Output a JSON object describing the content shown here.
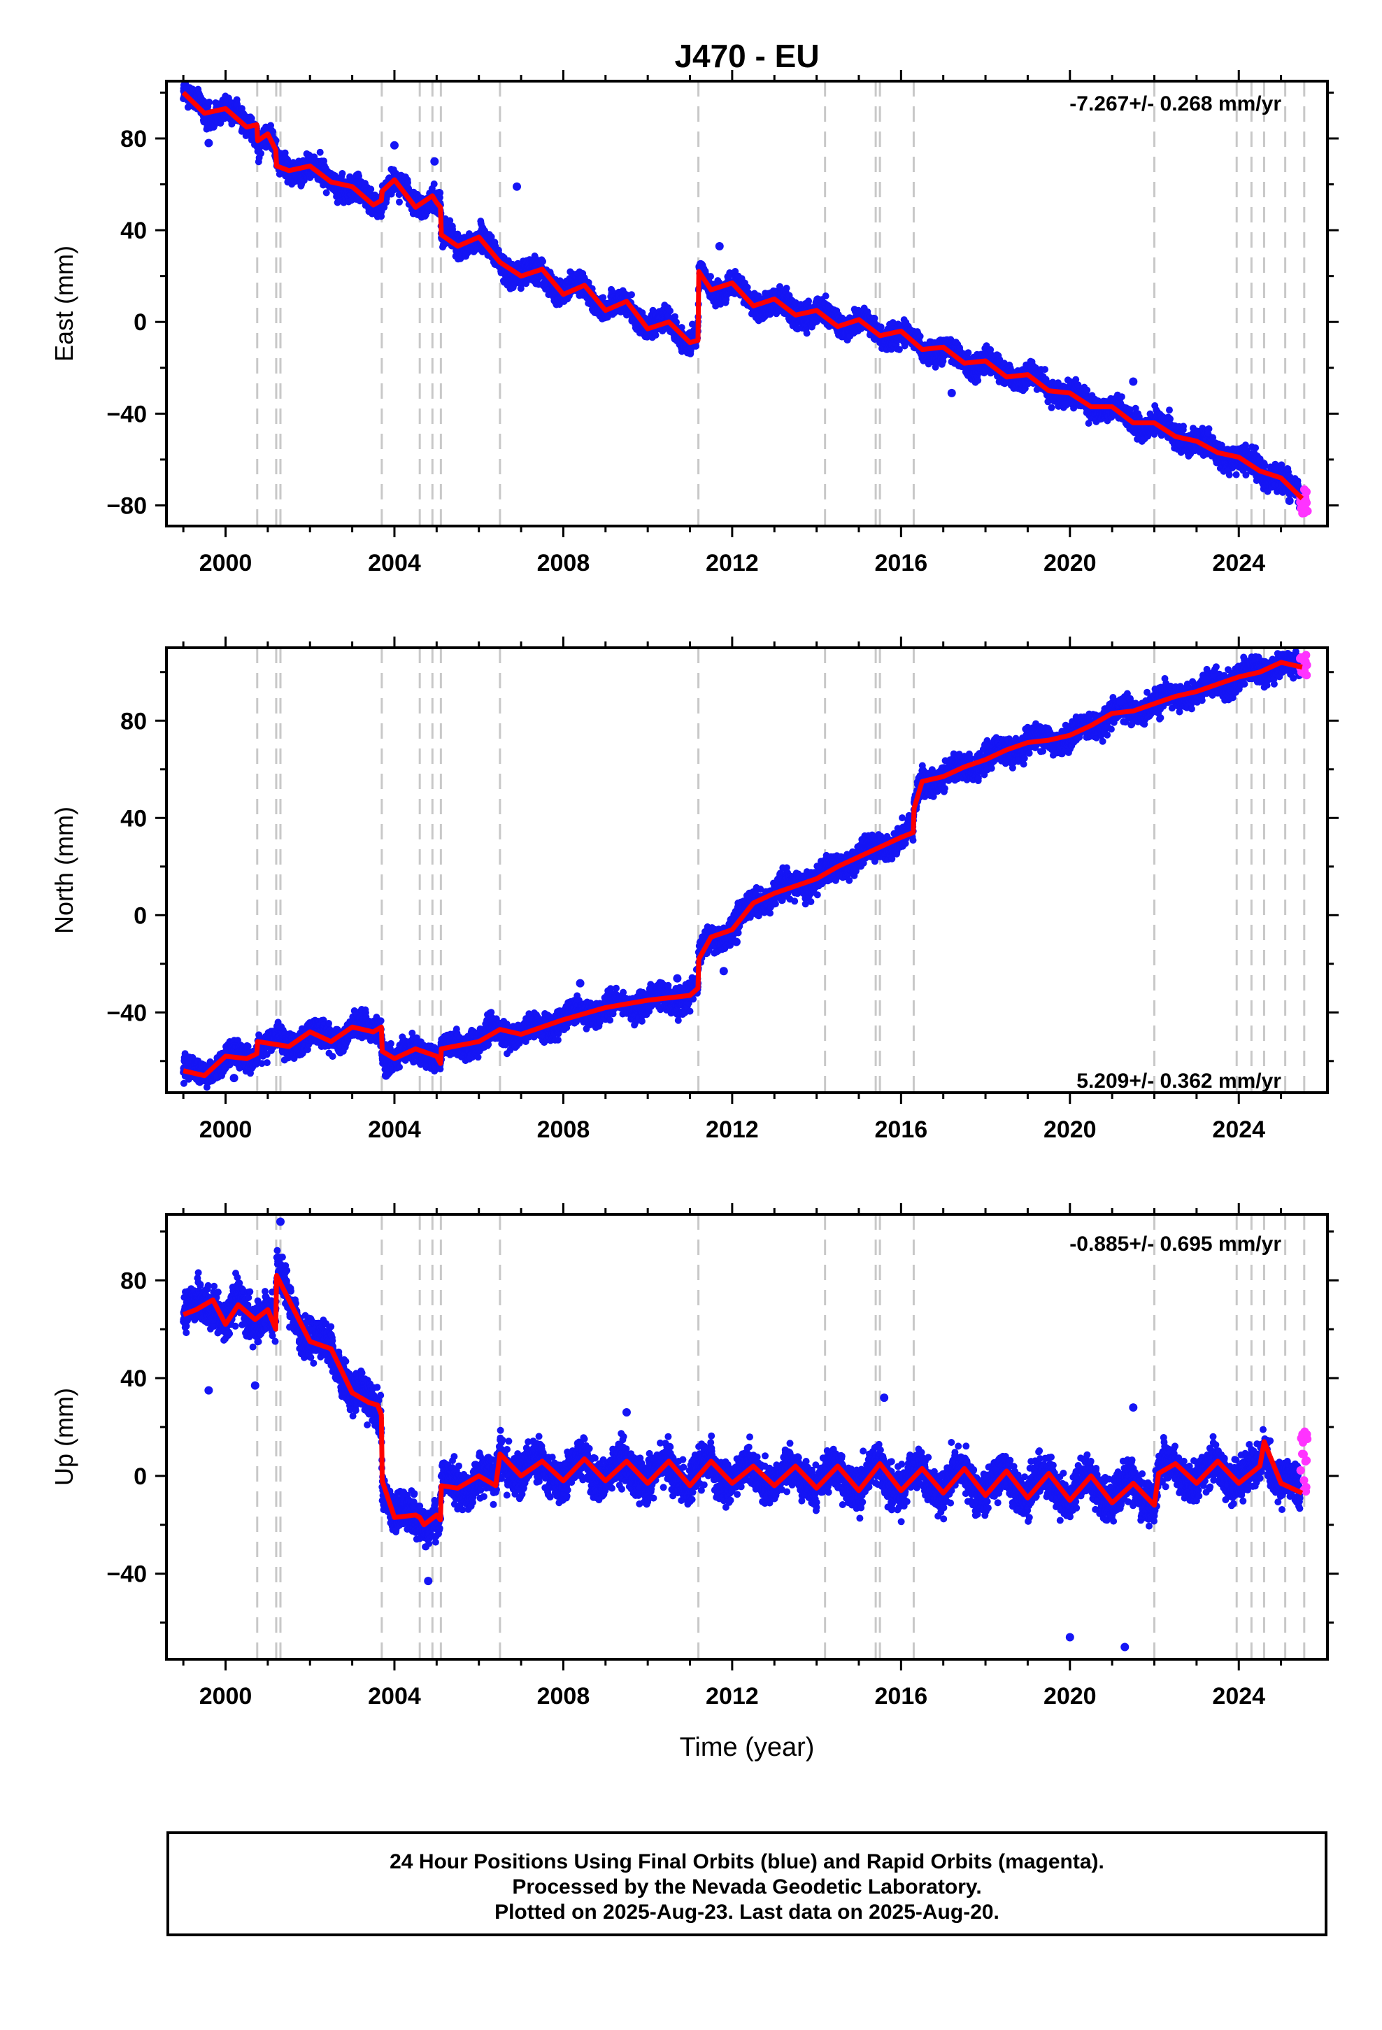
{
  "title": "J470 - EU",
  "footer": {
    "line1": "24 Hour Positions Using Final Orbits (blue) and Rapid Orbits (magenta).",
    "line2": "Processed by the Nevada Geodetic Laboratory.",
    "line3": "Plotted on 2025-Aug-23. Last data on 2025-Aug-20."
  },
  "colors": {
    "final_orbits": "#1515f5",
    "rapid_orbits": "#ff33ff",
    "model_fit": "#ff0000",
    "event_lines": "#c8c8c8"
  },
  "event_years": [
    2000.75,
    2001.2,
    2001.3,
    2003.7,
    2004.6,
    2004.9,
    2005.1,
    2006.5,
    2011.2,
    2014.2,
    2015.4,
    2015.5,
    2016.3,
    2022.0,
    2023.95,
    2024.3,
    2024.6,
    2025.1,
    2025.55
  ],
  "chart_data": [
    {
      "type": "scatter",
      "panel": "east",
      "ylabel": "East (mm)",
      "xlabel": "",
      "xlim": [
        1998.6,
        2026.1
      ],
      "ylim": [
        -89,
        105
      ],
      "xticks": [
        2000,
        2004,
        2008,
        2012,
        2016,
        2020,
        2024
      ],
      "yticks": [
        -80,
        -40,
        0,
        40,
        80
      ],
      "velocity_label": "-7.267+/- 0.268 mm/yr",
      "velocity_label_position": "top-right",
      "grid": false,
      "series": [
        {
          "role": "model fit",
          "x": [
            1999.0,
            1999.5,
            2000.0,
            2000.5,
            2000.74,
            2000.76,
            2001.0,
            2001.19,
            2001.21,
            2001.5,
            2002.0,
            2002.5,
            2003.0,
            2003.5,
            2003.69,
            2003.71,
            2004.0,
            2004.5,
            2004.9,
            2005.0,
            2005.09,
            2005.11,
            2005.5,
            2006.0,
            2006.5,
            2007.0,
            2007.5,
            2008.0,
            2008.5,
            2009.0,
            2009.5,
            2010.0,
            2010.5,
            2011.0,
            2011.19,
            2011.21,
            2011.5,
            2012.0,
            2012.5,
            2013.0,
            2013.5,
            2014.0,
            2014.5,
            2015.0,
            2015.5,
            2016.0,
            2016.5,
            2017.0,
            2017.5,
            2018.0,
            2018.5,
            2019.0,
            2019.5,
            2020.0,
            2020.5,
            2021.0,
            2021.5,
            2022.0,
            2022.5,
            2023.0,
            2023.5,
            2024.0,
            2024.5,
            2025.0,
            2025.5
          ],
          "y": [
            100,
            91,
            93,
            85,
            86,
            79,
            82,
            75,
            68,
            66,
            68,
            61,
            59,
            51,
            53,
            57,
            62,
            50,
            55,
            52,
            50,
            38,
            33,
            37,
            26,
            20,
            23,
            12,
            16,
            5,
            9,
            -3,
            0,
            -9,
            -8,
            22,
            14,
            17,
            7,
            10,
            3,
            5,
            -2,
            1,
            -6,
            -4,
            -12,
            -11,
            -18,
            -17,
            -24,
            -23,
            -30,
            -31,
            -37,
            -37,
            -44,
            -44,
            -50,
            -52,
            -57,
            -59,
            -65,
            -68,
            -77
          ]
        },
        {
          "role": "daily positions (final orbits)",
          "noise_mm": 3.5,
          "outliers": [
            [
              1999.6,
              78
            ],
            [
              2004.0,
              77
            ],
            [
              2004.95,
              70
            ],
            [
              2006.9,
              59
            ],
            [
              2011.7,
              33
            ],
            [
              2017.2,
              -31
            ],
            [
              2019.9,
              -36
            ],
            [
              2021.5,
              -26
            ],
            [
              2022.6,
              -53
            ],
            [
              2025.2,
              -78
            ]
          ]
        },
        {
          "role": "daily positions (rapid orbits)",
          "x_range": [
            2025.45,
            2025.63
          ],
          "y_range": [
            -84,
            -73
          ]
        }
      ]
    },
    {
      "type": "scatter",
      "panel": "north",
      "ylabel": "North (mm)",
      "xlabel": "",
      "xlim": [
        1998.6,
        2026.1
      ],
      "ylim": [
        -73,
        110
      ],
      "xticks": [
        2000,
        2004,
        2008,
        2012,
        2016,
        2020,
        2024
      ],
      "yticks": [
        -40,
        0,
        40,
        80
      ],
      "velocity_label": "5.209+/- 0.362 mm/yr",
      "velocity_label_position": "bottom-right",
      "grid": false,
      "series": [
        {
          "role": "model fit",
          "x": [
            1999.0,
            1999.5,
            2000.0,
            2000.5,
            2000.74,
            2000.76,
            2001.5,
            2002.0,
            2002.5,
            2003.0,
            2003.5,
            2003.69,
            2003.71,
            2004.0,
            2004.5,
            2005.0,
            2005.09,
            2005.11,
            2006.0,
            2006.5,
            2007.0,
            2008.0,
            2009.0,
            2010.0,
            2011.0,
            2011.19,
            2011.21,
            2011.5,
            2012.0,
            2012.5,
            2013.0,
            2013.5,
            2014.0,
            2014.5,
            2015.0,
            2015.5,
            2016.0,
            2016.29,
            2016.31,
            2016.5,
            2017.0,
            2017.5,
            2018.0,
            2018.5,
            2019.0,
            2019.5,
            2020.0,
            2020.5,
            2021.0,
            2021.5,
            2022.0,
            2022.5,
            2023.0,
            2023.5,
            2024.0,
            2024.5,
            2025.0,
            2025.5
          ],
          "y": [
            -64,
            -66,
            -58,
            -59,
            -57,
            -52,
            -54,
            -48,
            -52,
            -46,
            -48,
            -46,
            -56,
            -59,
            -55,
            -58,
            -61,
            -55,
            -52,
            -47,
            -49,
            -43,
            -38,
            -35,
            -33,
            -30,
            -18,
            -9,
            -6,
            5,
            9,
            12,
            15,
            20,
            24,
            28,
            32,
            34,
            44,
            55,
            57,
            61,
            64,
            68,
            71,
            72,
            74,
            78,
            83,
            84,
            87,
            90,
            92,
            95,
            98,
            100,
            104,
            102
          ]
        },
        {
          "role": "daily positions (final orbits)",
          "noise_mm": 3.5,
          "outliers": [
            [
              2000.2,
              -67
            ],
            [
              2003.8,
              -66
            ],
            [
              2008.4,
              -28
            ],
            [
              2010.7,
              -26
            ],
            [
              2011.8,
              -23
            ],
            [
              2012.1,
              -11
            ],
            [
              2018.0,
              70
            ],
            [
              2021.2,
              88
            ],
            [
              2023.2,
              97
            ]
          ]
        },
        {
          "role": "daily positions (rapid orbits)",
          "x_range": [
            2025.45,
            2025.63
          ],
          "y_range": [
            98,
            107
          ]
        }
      ]
    },
    {
      "type": "scatter",
      "panel": "up",
      "ylabel": "Up (mm)",
      "xlabel": "Time (year)",
      "xlim": [
        1998.6,
        2026.1
      ],
      "ylim": [
        -75,
        107
      ],
      "xticks": [
        2000,
        2004,
        2008,
        2012,
        2016,
        2020,
        2024
      ],
      "yticks": [
        -40,
        0,
        40,
        80
      ],
      "velocity_label": "-0.885+/- 0.695 mm/yr",
      "velocity_label_position": "top-right",
      "grid": false,
      "series": [
        {
          "role": "model fit",
          "x": [
            1999.0,
            1999.3,
            1999.7,
            2000.0,
            2000.3,
            2000.7,
            2001.0,
            2001.19,
            2001.21,
            2001.5,
            2002.0,
            2002.5,
            2003.0,
            2003.4,
            2003.6,
            2003.69,
            2003.71,
            2004.0,
            2004.5,
            2004.6,
            2004.7,
            2005.0,
            2005.09,
            2005.11,
            2005.5,
            2006.0,
            2006.4,
            2006.5,
            2007.0,
            2007.5,
            2008.0,
            2008.5,
            2009.0,
            2009.5,
            2010.0,
            2010.5,
            2011.0,
            2011.5,
            2012.0,
            2012.5,
            2013.0,
            2013.5,
            2014.0,
            2014.5,
            2015.0,
            2015.5,
            2016.0,
            2016.5,
            2017.0,
            2017.5,
            2018.0,
            2018.5,
            2019.0,
            2019.5,
            2020.0,
            2020.5,
            2021.0,
            2021.5,
            2022.0,
            2022.1,
            2022.5,
            2023.0,
            2023.5,
            2024.0,
            2024.5,
            2024.6,
            2025.0,
            2025.5
          ],
          "y": [
            66,
            68,
            72,
            62,
            70,
            64,
            68,
            60,
            82,
            72,
            55,
            52,
            34,
            30,
            29,
            25,
            -2,
            -17,
            -16,
            -17,
            -20,
            -16,
            -18,
            -4,
            -5,
            0,
            -4,
            9,
            0,
            6,
            -2,
            7,
            -2,
            6,
            -3,
            6,
            -4,
            6,
            -3,
            4,
            -4,
            4,
            -5,
            4,
            -6,
            5,
            -6,
            3,
            -7,
            3,
            -8,
            2,
            -9,
            1,
            -10,
            0,
            -11,
            -3,
            -12,
            1,
            5,
            -3,
            6,
            -3,
            4,
            14,
            -3,
            -7
          ]
        },
        {
          "role": "daily positions (final orbits)",
          "noise_mm": 5.5,
          "outliers": [
            [
              1999.6,
              35
            ],
            [
              2000.7,
              37
            ],
            [
              2001.3,
              104
            ],
            [
              2004.8,
              -43
            ],
            [
              2009.5,
              26
            ],
            [
              2015.6,
              32
            ],
            [
              2020.0,
              -66
            ],
            [
              2021.3,
              -70
            ],
            [
              2021.5,
              28
            ]
          ]
        },
        {
          "role": "daily positions (rapid orbits)",
          "x_range": [
            2025.45,
            2025.63
          ],
          "y_range": [
            -8,
            22
          ]
        }
      ]
    }
  ]
}
